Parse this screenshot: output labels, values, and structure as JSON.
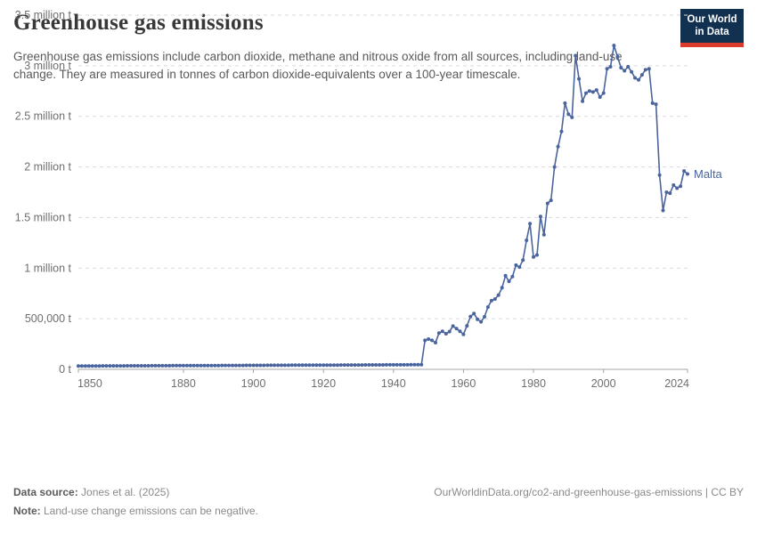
{
  "header": {
    "title": "Greenhouse gas emissions",
    "subtitle": "Greenhouse gas emissions include carbon dioxide, methane and nitrous oxide from all sources, including land-use change. They are measured in tonnes of carbon dioxide-equivalents over a 100-year timescale.",
    "logo": {
      "line1": "Our World",
      "line2": "in Data"
    }
  },
  "chart_data": {
    "type": "line",
    "title": "Greenhouse gas emissions",
    "entity_label": "Malta",
    "unit": "t",
    "xlim": [
      1850,
      2024
    ],
    "ylim": [
      0,
      3500000
    ],
    "grid": "dashed-horizontal",
    "legend_position": "end-of-line-label",
    "x_ticks": [
      1850,
      1880,
      1900,
      1920,
      1940,
      1960,
      1980,
      2000,
      2024
    ],
    "y_ticks": [
      {
        "value": 0,
        "label": "0 t"
      },
      {
        "value": 500000,
        "label": "500,000 t"
      },
      {
        "value": 1000000,
        "label": "1 million t"
      },
      {
        "value": 1500000,
        "label": "1.5 million t"
      },
      {
        "value": 2000000,
        "label": "2 million t"
      },
      {
        "value": 2500000,
        "label": "2.5 million t"
      },
      {
        "value": 3000000,
        "label": "3 million t"
      },
      {
        "value": 3500000,
        "label": "3.5 million t"
      }
    ],
    "series": [
      {
        "name": "Malta",
        "start_year": 1850,
        "values": [
          33000,
          33130,
          33260,
          33390,
          33520,
          33650,
          33780,
          33910,
          34040,
          34170,
          34300,
          34430,
          34560,
          34690,
          34820,
          34950,
          35080,
          35210,
          35340,
          35470,
          35600,
          35730,
          35860,
          35990,
          36120,
          36250,
          36380,
          36510,
          36640,
          36770,
          36900,
          37030,
          37160,
          37290,
          37420,
          37550,
          37680,
          37810,
          37940,
          38070,
          38200,
          38330,
          38460,
          38590,
          38720,
          38850,
          38980,
          39110,
          39240,
          39370,
          39500,
          39630,
          39760,
          39890,
          40020,
          40150,
          40280,
          40410,
          40540,
          40670,
          40800,
          40930,
          41060,
          41190,
          41320,
          41450,
          41580,
          41710,
          41840,
          41970,
          42100,
          42230,
          42360,
          42490,
          42620,
          42750,
          42880,
          43010,
          43140,
          43270,
          43400,
          43530,
          43660,
          43790,
          43920,
          44050,
          44180,
          44310,
          44440,
          44570,
          44700,
          44830,
          44960,
          45090,
          45220,
          45350,
          45480,
          45610,
          45740,
          287000,
          299000,
          287000,
          264000,
          358000,
          376000,
          352000,
          373000,
          427000,
          402000,
          376000,
          346000,
          430000,
          522000,
          551000,
          495000,
          470000,
          520000,
          616000,
          680000,
          695000,
          733000,
          806000,
          925000,
          870000,
          916000,
          1030000,
          1010000,
          1080000,
          1275000,
          1440000,
          1110000,
          1130000,
          1510000,
          1330000,
          1640000,
          1670000,
          2000000,
          2200000,
          2350000,
          2630000,
          2520000,
          2490000,
          3100000,
          2870000,
          2650000,
          2730000,
          2750000,
          2740000,
          2760000,
          2690000,
          2730000,
          2970000,
          2990000,
          3200000,
          3090000,
          2980000,
          2950000,
          2990000,
          2940000,
          2880000,
          2860000,
          2910000,
          2960000,
          2970000,
          2630000,
          2620000,
          1920000,
          1570000,
          1750000,
          1740000,
          1820000,
          1790000,
          1810000,
          1960000,
          1930000
        ]
      }
    ],
    "colors": {
      "line": "#4a649e",
      "grid": "#dadada",
      "axis": "#a5a5a5",
      "tick_label": "#6e6e6e"
    }
  },
  "footer": {
    "source_label": "Data source:",
    "source_value": " Jones et al. (2025)",
    "link": "OurWorldinData.org/co2-and-greenhouse-gas-emissions | CC BY",
    "note_label": "Note:",
    "note_value": " Land-use change emissions can be negative."
  }
}
